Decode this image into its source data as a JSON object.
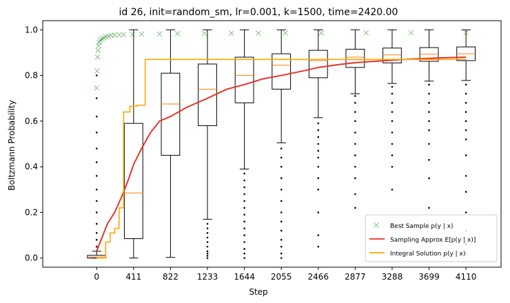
{
  "chart_data": {
    "type": "box",
    "title": "id 26, init=random_sm, lr=0.001, k=1500, time=2420.00",
    "xlabel": "Step",
    "ylabel": "Boltzmann Probability",
    "xlim": [
      -600,
      4500
    ],
    "ylim": [
      -0.04,
      1.04
    ],
    "x_ticks": [
      0,
      411,
      822,
      1233,
      1644,
      2055,
      2466,
      2877,
      3288,
      3699,
      4110
    ],
    "y_ticks": [
      0.0,
      0.2,
      0.4,
      0.6,
      0.8,
      1.0
    ],
    "y_tick_labels": [
      "0.0",
      "0.2",
      "0.4",
      "0.6",
      "0.8",
      "1.0"
    ],
    "grid": false,
    "legend_position": "lower-right",
    "colors": {
      "best_sample": "#228b22",
      "sampling_approx": "#e8322a",
      "integral_solution": "#ffa500",
      "box": "#000000",
      "median": "#ff7f0e"
    },
    "boxes": [
      {
        "step": 0,
        "whisker_low": 0.0,
        "q1": 0.0,
        "median": 0.005,
        "q3": 0.012,
        "whisker_high": 0.03
      },
      {
        "step": 411,
        "whisker_low": 0.0,
        "q1": 0.085,
        "median": 0.285,
        "q3": 0.59,
        "whisker_high": 1.0
      },
      {
        "step": 822,
        "whisker_low": 0.003,
        "q1": 0.45,
        "median": 0.675,
        "q3": 0.81,
        "whisker_high": 1.0
      },
      {
        "step": 1233,
        "whisker_low": 0.17,
        "q1": 0.58,
        "median": 0.74,
        "q3": 0.85,
        "whisker_high": 1.0
      },
      {
        "step": 1644,
        "whisker_low": 0.39,
        "q1": 0.68,
        "median": 0.8,
        "q3": 0.88,
        "whisker_high": 1.0
      },
      {
        "step": 2055,
        "whisker_low": 0.505,
        "q1": 0.74,
        "median": 0.845,
        "q3": 0.895,
        "whisker_high": 1.0
      },
      {
        "step": 2466,
        "whisker_low": 0.615,
        "q1": 0.79,
        "median": 0.865,
        "q3": 0.91,
        "whisker_high": 1.0
      },
      {
        "step": 2877,
        "whisker_low": 0.72,
        "q1": 0.835,
        "median": 0.88,
        "q3": 0.915,
        "whisker_high": 1.0
      },
      {
        "step": 3288,
        "whisker_low": 0.765,
        "q1": 0.855,
        "median": 0.89,
        "q3": 0.92,
        "whisker_high": 1.0
      },
      {
        "step": 3699,
        "whisker_low": 0.775,
        "q1": 0.862,
        "median": 0.893,
        "q3": 0.922,
        "whisker_high": 1.0
      },
      {
        "step": 4110,
        "whisker_low": 0.778,
        "q1": 0.865,
        "median": 0.895,
        "q3": 0.925,
        "whisker_high": 1.0
      }
    ],
    "outliers": [
      {
        "step": 0,
        "values": [
          0.05,
          0.08,
          0.11,
          0.15,
          0.2,
          0.25,
          0.3,
          0.36,
          0.42,
          0.48,
          0.55,
          0.62,
          0.7,
          0.8
        ]
      },
      {
        "step": 1233,
        "values": [
          0.0,
          0.01,
          0.02,
          0.03,
          0.05,
          0.07,
          0.09,
          0.11,
          0.13,
          0.15
        ]
      },
      {
        "step": 1644,
        "values": [
          0.0,
          0.02,
          0.04,
          0.07,
          0.1,
          0.13,
          0.16,
          0.19,
          0.22,
          0.25,
          0.28,
          0.31,
          0.34,
          0.37
        ]
      },
      {
        "step": 2055,
        "values": [
          0.0,
          0.02,
          0.05,
          0.08,
          0.12,
          0.16,
          0.2,
          0.25,
          0.3,
          0.35,
          0.4,
          0.44,
          0.48
        ]
      },
      {
        "step": 2466,
        "values": [
          0.05,
          0.1,
          0.2,
          0.3,
          0.35,
          0.4,
          0.44,
          0.47,
          0.5,
          0.53,
          0.56,
          0.59
        ]
      },
      {
        "step": 2877,
        "values": [
          0.22,
          0.28,
          0.35,
          0.4,
          0.45,
          0.5,
          0.55,
          0.6,
          0.64,
          0.68,
          0.71
        ]
      },
      {
        "step": 3288,
        "values": [
          0.15,
          0.3,
          0.4,
          0.45,
          0.5,
          0.55,
          0.6,
          0.64,
          0.68,
          0.72,
          0.75
        ]
      },
      {
        "step": 3699,
        "values": [
          0.22,
          0.35,
          0.43,
          0.5,
          0.56,
          0.6,
          0.64,
          0.68,
          0.72,
          0.76
        ]
      },
      {
        "step": 4110,
        "values": [
          0.02,
          0.06,
          0.12,
          0.2,
          0.29,
          0.36,
          0.45,
          0.52,
          0.56,
          0.6,
          0.64,
          0.68,
          0.72,
          0.76
        ]
      }
    ],
    "series": [
      {
        "name": "Best Sample $p(y \\mid x)$",
        "legend_text": "Best Sample p(y | x)",
        "type": "scatter-x",
        "x": [
          0,
          5,
          10,
          15,
          20,
          30,
          40,
          60,
          80,
          100,
          130,
          160,
          200,
          250,
          300,
          400,
          500,
          700,
          900,
          1200,
          1500,
          1800,
          2100,
          2500,
          3000,
          3500,
          4110
        ],
        "y": [
          0.745,
          0.82,
          0.88,
          0.91,
          0.93,
          0.945,
          0.955,
          0.96,
          0.965,
          0.97,
          0.972,
          0.975,
          0.977,
          0.978,
          0.979,
          0.98,
          0.981,
          0.982,
          0.983,
          0.984,
          0.985,
          0.985,
          0.986,
          0.986,
          0.987,
          0.987,
          0.987
        ]
      },
      {
        "name": "Sampling Approx $E[p(y \\mid x)]$",
        "legend_text": "Sampling Approx E[p(y | x)]",
        "type": "line",
        "x": [
          0,
          60,
          120,
          200,
          280,
          350,
          411,
          500,
          600,
          700,
          822,
          1000,
          1233,
          1450,
          1644,
          1850,
          2055,
          2300,
          2466,
          2700,
          2877,
          3100,
          3288,
          3500,
          3699,
          3900,
          4110
        ],
        "y": [
          0.03,
          0.09,
          0.15,
          0.2,
          0.27,
          0.34,
          0.41,
          0.48,
          0.55,
          0.6,
          0.62,
          0.66,
          0.7,
          0.74,
          0.76,
          0.785,
          0.8,
          0.82,
          0.835,
          0.848,
          0.856,
          0.862,
          0.867,
          0.872,
          0.875,
          0.878,
          0.88
        ]
      },
      {
        "name": "Integral Solution $p(y \\mid x)$",
        "legend_text": "Integral Solution p(y | x)",
        "type": "step",
        "x": [
          0,
          100,
          150,
          200,
          250,
          300,
          370,
          450,
          540,
          4110
        ],
        "y": [
          0.0,
          0.07,
          0.11,
          0.13,
          0.22,
          0.64,
          0.665,
          0.67,
          0.87,
          0.87
        ]
      }
    ]
  }
}
